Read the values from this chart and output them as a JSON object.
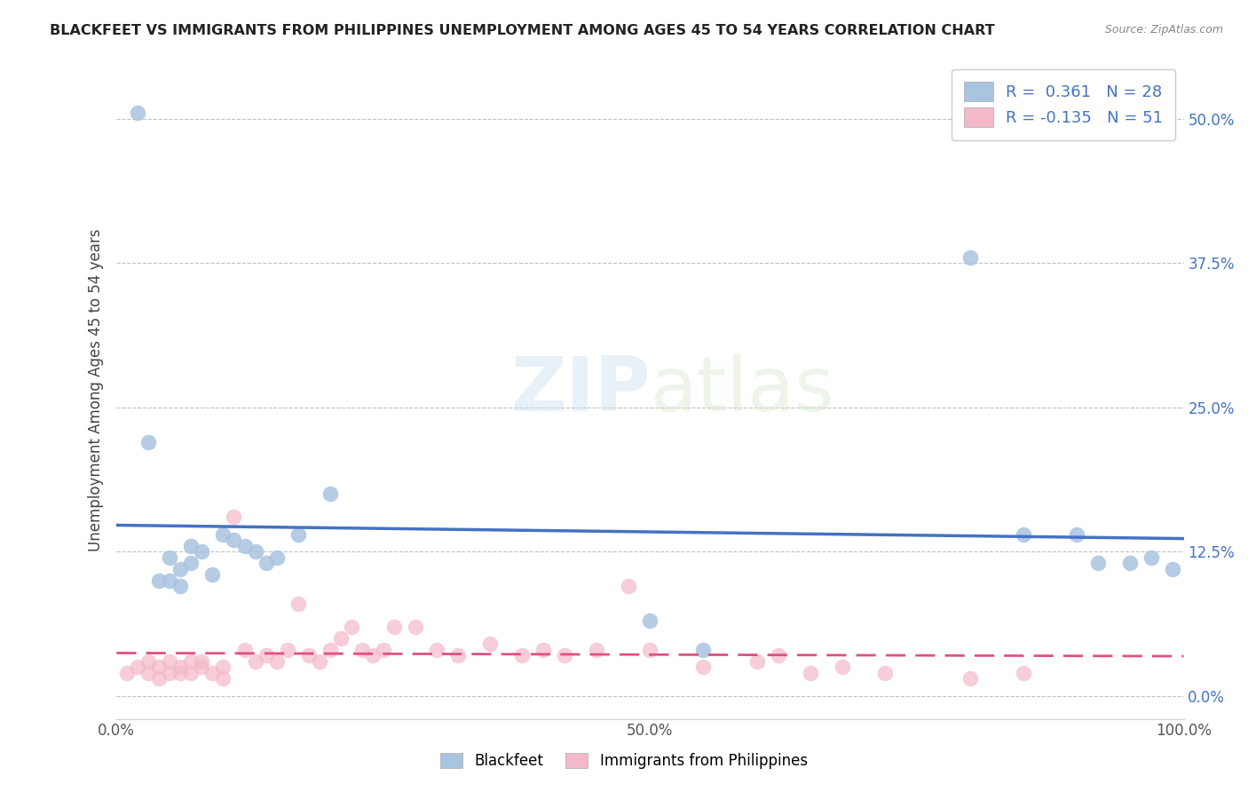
{
  "title": "BLACKFEET VS IMMIGRANTS FROM PHILIPPINES UNEMPLOYMENT AMONG AGES 45 TO 54 YEARS CORRELATION CHART",
  "source": "Source: ZipAtlas.com",
  "ylabel": "Unemployment Among Ages 45 to 54 years",
  "xlim": [
    0.0,
    1.0
  ],
  "ylim": [
    -0.02,
    0.55
  ],
  "xticks": [
    0.0,
    0.25,
    0.5,
    0.75,
    1.0
  ],
  "xticklabels": [
    "0.0%",
    "",
    "50.0%",
    "",
    "100.0%"
  ],
  "yticks": [
    0.0,
    0.125,
    0.25,
    0.375,
    0.5
  ],
  "yticklabels": [
    "0.0%",
    "12.5%",
    "25.0%",
    "37.5%",
    "50.0%"
  ],
  "blackfeet_color": "#a8c4e0",
  "blackfeet_line_color": "#4472c4",
  "philippines_color": "#f4b8c8",
  "philippines_line_color": "#e05080",
  "blackfeet_R": 0.361,
  "blackfeet_N": 28,
  "philippines_R": -0.135,
  "philippines_N": 51,
  "legend_labels": [
    "Blackfeet",
    "Immigrants from Philippines"
  ],
  "blackfeet_x": [
    0.02,
    0.03,
    0.04,
    0.05,
    0.05,
    0.06,
    0.06,
    0.07,
    0.07,
    0.08,
    0.09,
    0.1,
    0.11,
    0.12,
    0.13,
    0.14,
    0.15,
    0.17,
    0.2,
    0.5,
    0.55,
    0.8,
    0.85,
    0.9,
    0.92,
    0.95,
    0.97,
    0.99
  ],
  "blackfeet_y": [
    0.505,
    0.22,
    0.1,
    0.12,
    0.1,
    0.11,
    0.095,
    0.13,
    0.115,
    0.125,
    0.105,
    0.14,
    0.135,
    0.13,
    0.125,
    0.115,
    0.12,
    0.14,
    0.175,
    0.065,
    0.04,
    0.38,
    0.14,
    0.14,
    0.115,
    0.115,
    0.12,
    0.11
  ],
  "philippines_x": [
    0.01,
    0.02,
    0.03,
    0.03,
    0.04,
    0.04,
    0.05,
    0.05,
    0.06,
    0.06,
    0.07,
    0.07,
    0.08,
    0.08,
    0.09,
    0.1,
    0.1,
    0.11,
    0.12,
    0.13,
    0.14,
    0.15,
    0.16,
    0.17,
    0.18,
    0.19,
    0.2,
    0.21,
    0.22,
    0.23,
    0.24,
    0.25,
    0.26,
    0.28,
    0.3,
    0.32,
    0.35,
    0.38,
    0.4,
    0.42,
    0.45,
    0.48,
    0.5,
    0.55,
    0.6,
    0.62,
    0.65,
    0.68,
    0.72,
    0.8,
    0.85
  ],
  "philippines_y": [
    0.02,
    0.025,
    0.02,
    0.03,
    0.025,
    0.015,
    0.02,
    0.03,
    0.025,
    0.02,
    0.03,
    0.02,
    0.025,
    0.03,
    0.02,
    0.025,
    0.015,
    0.155,
    0.04,
    0.03,
    0.035,
    0.03,
    0.04,
    0.08,
    0.035,
    0.03,
    0.04,
    0.05,
    0.06,
    0.04,
    0.035,
    0.04,
    0.06,
    0.06,
    0.04,
    0.035,
    0.045,
    0.035,
    0.04,
    0.035,
    0.04,
    0.095,
    0.04,
    0.025,
    0.03,
    0.035,
    0.02,
    0.025,
    0.02,
    0.015,
    0.02
  ]
}
